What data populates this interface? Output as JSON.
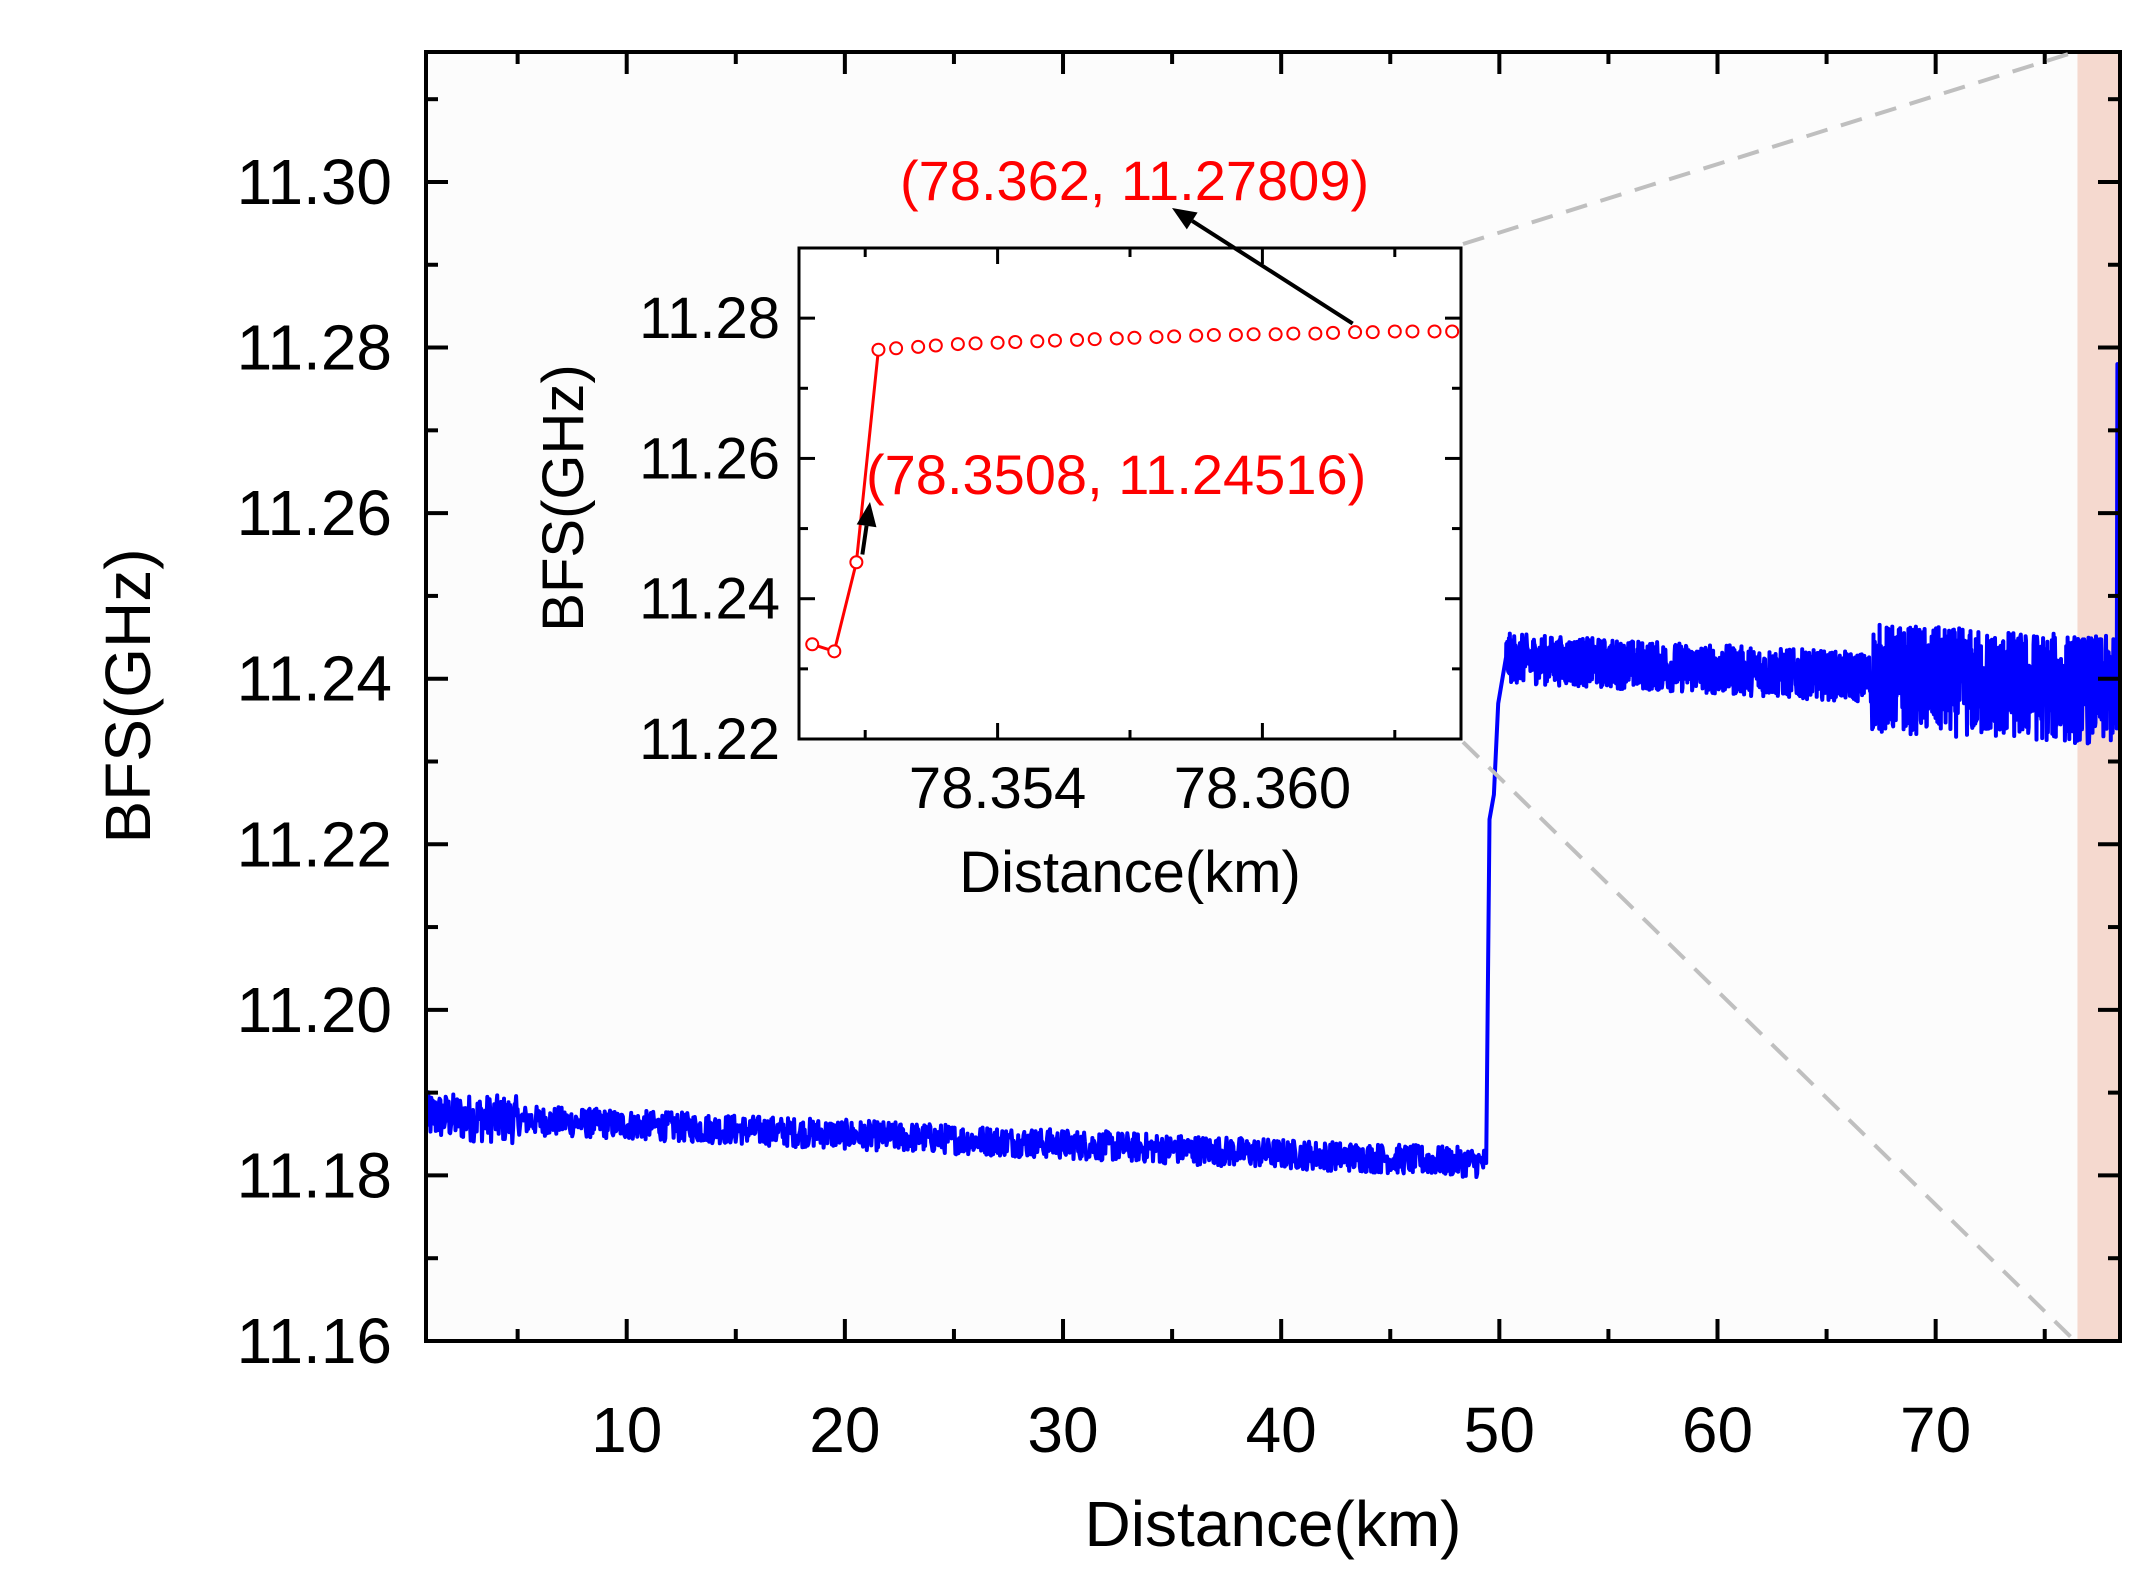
{
  "chart_data": [
    {
      "type": "line",
      "title": "",
      "xlabel": "Distance(km)",
      "ylabel": "BFS(GHz)",
      "xlim": [
        0.8,
        78.45
      ],
      "ylim": [
        11.16,
        11.3157
      ],
      "xticks": [
        10,
        20,
        30,
        40,
        50,
        60,
        70
      ],
      "xtick_labels": [
        "10",
        "20",
        "30",
        "40",
        "50",
        "60",
        "70"
      ],
      "yticks": [
        11.16,
        11.18,
        11.2,
        11.22,
        11.24,
        11.26,
        11.28,
        11.3
      ],
      "ytick_labels": [
        "11.16",
        "11.18",
        "11.20",
        "11.22",
        "11.24",
        "11.26",
        "11.28",
        "11.30"
      ],
      "highlight_region": {
        "x_range": [
          76.5,
          78.45
        ],
        "color": "#f5d9cf"
      },
      "series": [
        {
          "name": "BFS",
          "color": "#0000ff",
          "segments": [
            {
              "x_range": [
                0.8,
                49.4
              ],
              "trend_start": 11.1872,
              "trend_end": 11.1815,
              "noise": 0.0018
            },
            {
              "x_range": [
                50.3,
                78.35
              ],
              "trend_start": 11.2425,
              "trend_end": 11.2385,
              "noise": 0.003
            }
          ],
          "step_points": [
            {
              "x": 49.4,
              "y": 11.1815
            },
            {
              "x": 49.55,
              "y": 11.223
            },
            {
              "x": 49.75,
              "y": 11.226
            },
            {
              "x": 49.95,
              "y": 11.237
            },
            {
              "x": 50.3,
              "y": 11.2425
            }
          ],
          "end_spike": [
            {
              "x": 78.3,
              "y": 11.234
            },
            {
              "x": 78.33,
              "y": 11.278
            },
            {
              "x": 78.36,
              "y": 11.278
            }
          ]
        }
      ]
    },
    {
      "type": "line",
      "title": "",
      "xlabel": "Distance(km)",
      "ylabel": "BFS(GHz)",
      "xlim": [
        78.3495,
        78.3645
      ],
      "ylim": [
        11.22,
        11.29
      ],
      "xticks": [
        78.354,
        78.36
      ],
      "xtick_labels": [
        "78.354",
        "78.360"
      ],
      "yticks": [
        11.22,
        11.24,
        11.26,
        11.28
      ],
      "ytick_labels": [
        "11.22",
        "11.24",
        "11.26",
        "11.28"
      ],
      "series": [
        {
          "name": "BFS zoom",
          "line_color": "#ff0000",
          "marker": "open-circle",
          "x": [
            78.3498,
            78.3503,
            78.3508,
            78.3513,
            78.3517,
            78.3522,
            78.3526,
            78.3531,
            78.3535,
            78.354,
            78.3544,
            78.3549,
            78.3553,
            78.3558,
            78.3562,
            78.3567,
            78.3571,
            78.3576,
            78.358,
            78.3585,
            78.3589,
            78.3594,
            78.3598,
            78.3603,
            78.3607,
            78.3612,
            78.3616,
            78.3621,
            78.3625,
            78.363,
            78.3634,
            78.3639,
            78.3643
          ],
          "y": [
            11.2335,
            11.2325,
            11.2452,
            11.2755,
            11.2757,
            11.2759,
            11.2761,
            11.2763,
            11.2764,
            11.2765,
            11.2766,
            11.2767,
            11.2768,
            11.2769,
            11.277,
            11.2771,
            11.2772,
            11.2773,
            11.2774,
            11.2775,
            11.2776,
            11.2776,
            11.2777,
            11.2777,
            11.2778,
            11.2778,
            11.2779,
            11.278,
            11.278,
            11.2781,
            11.2781,
            11.2781,
            11.2781
          ]
        }
      ],
      "annotations": [
        {
          "text": "(78.362, 11.27809)",
          "point": {
            "x": 78.362,
            "y": 11.27809
          },
          "color": "#ff0000"
        },
        {
          "text": "(78.3508, 11.24516)",
          "point": {
            "x": 78.3508,
            "y": 11.24516
          },
          "color": "#ff0000"
        }
      ]
    }
  ]
}
